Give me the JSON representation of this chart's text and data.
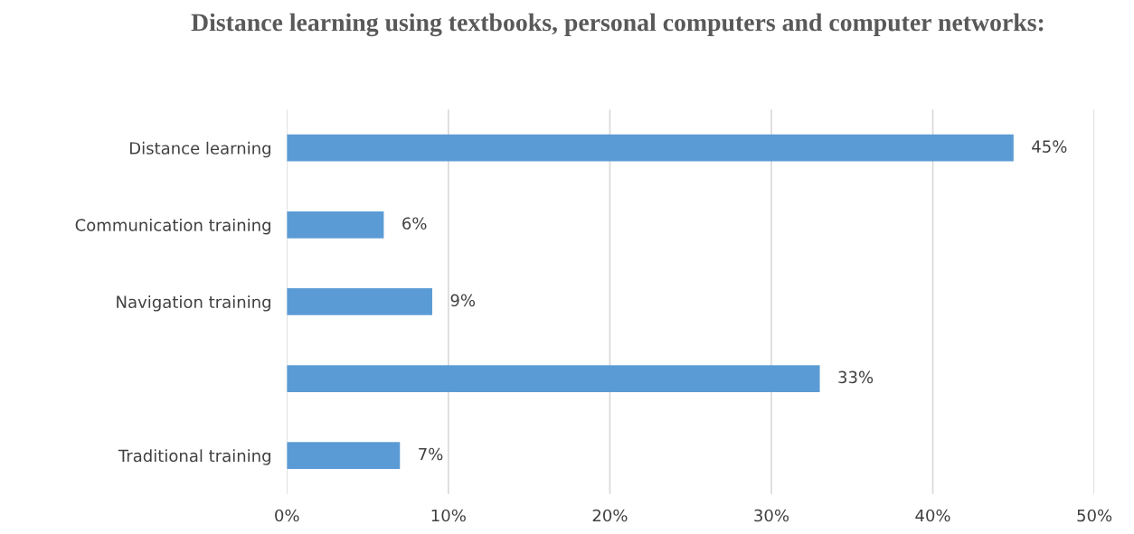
{
  "chart_data": {
    "type": "bar",
    "orientation": "horizontal",
    "title": "Distance learning using textbooks, personal computers and computer networks:",
    "categories": [
      "Distance learning",
      "Communication training",
      "Navigation training",
      null,
      "Traditional training"
    ],
    "values": [
      45,
      6,
      9,
      33,
      7
    ],
    "value_labels": [
      "45%",
      "6%",
      "9%",
      "33%",
      "7%"
    ],
    "color": "#5b9bd5",
    "xlim": [
      0,
      50
    ],
    "xticks": [
      {
        "value": 0,
        "label": "0%"
      },
      {
        "value": 10,
        "label": "10%"
      },
      {
        "value": 20,
        "label": "20%"
      },
      {
        "value": 30,
        "label": "30%"
      },
      {
        "value": 40,
        "label": "40%"
      },
      {
        "value": 50,
        "label": "50%"
      }
    ],
    "grid": "x",
    "legend": false
  }
}
